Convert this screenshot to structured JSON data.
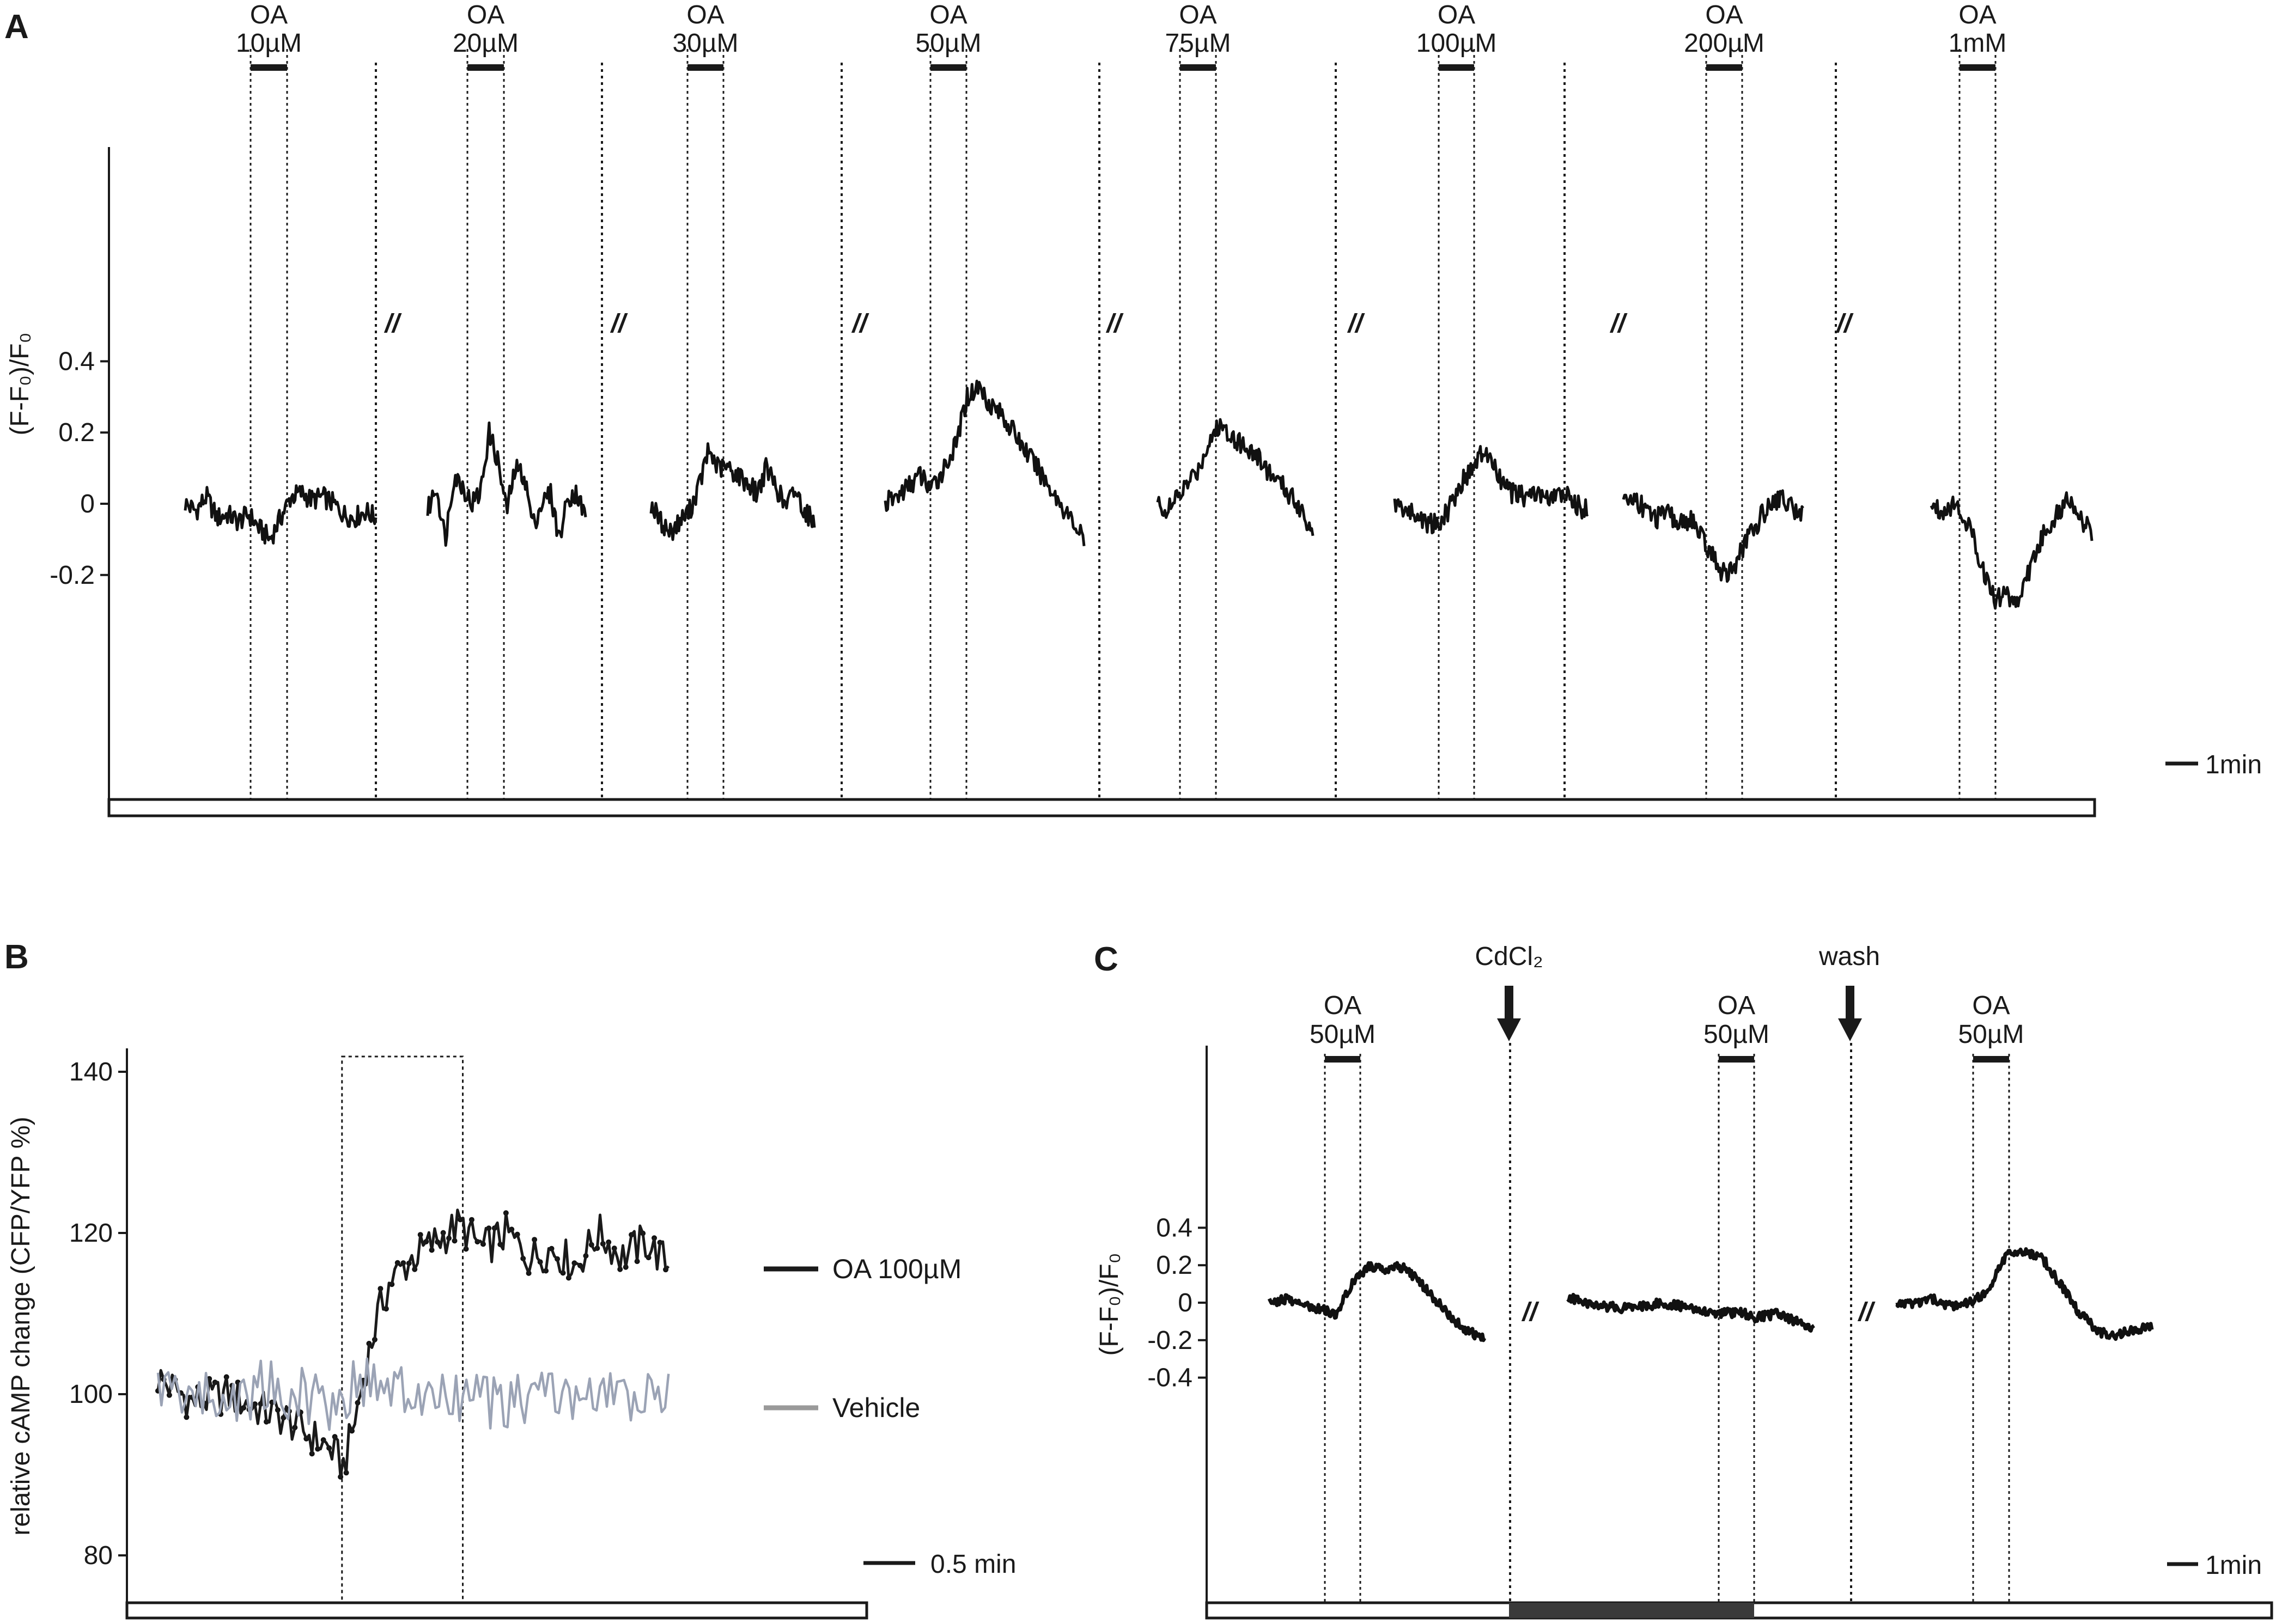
{
  "chart_data": [
    {
      "panel": "A",
      "type": "line",
      "ylabel": "(F-F₀)/F₀",
      "ylim": [
        -0.33,
        0.41
      ],
      "yticks": [
        {
          "value": 0.4,
          "label": "0.4"
        },
        {
          "value": 0.2,
          "label": "0.2"
        },
        {
          "value": 0,
          "label": "0"
        },
        {
          "value": -0.2,
          "label": "-0.2"
        }
      ],
      "scale_bar": "1min",
      "drug": "OA",
      "break_mark": "//",
      "segments": [
        {
          "concentration": "10µM",
          "trace_min": [
            0,
            10.5
          ],
          "stim_min": [
            3.6,
            5.5
          ],
          "values": [
            0.0,
            -0.02,
            0.02,
            -0.04,
            -0.03,
            -0.05,
            -0.03,
            -0.07,
            -0.1,
            -0.04,
            0.02,
            0.03,
            0.01,
            0.02,
            0.0,
            -0.03,
            -0.04,
            -0.02,
            -0.04
          ]
        },
        {
          "concentration": "20µM",
          "trace_min": [
            0,
            9.2
          ],
          "stim_min": [
            2.2,
            4.2
          ],
          "values": [
            -0.02,
            0.05,
            -0.1,
            0.08,
            0.05,
            0.0,
            0.03,
            0.2,
            0.12,
            -0.02,
            0.1,
            0.08,
            -0.06,
            0.0,
            0.03,
            -0.1,
            0.02,
            0.03,
            -0.04
          ]
        },
        {
          "concentration": "30µM",
          "trace_min": [
            0,
            9.2
          ],
          "stim_min": [
            2.0,
            4.0
          ],
          "values": [
            0.0,
            -0.05,
            -0.08,
            -0.05,
            -0.02,
            0.05,
            0.15,
            0.1,
            0.1,
            0.08,
            0.06,
            0.03,
            0.1,
            0.05,
            -0.01,
            0.04,
            -0.02,
            -0.05
          ]
        },
        {
          "concentration": "50µM",
          "trace_min": [
            0,
            10.7
          ],
          "stim_min": [
            2.5,
            4.5
          ],
          "values": [
            0.0,
            0.02,
            0.05,
            0.08,
            0.04,
            0.1,
            0.16,
            0.3,
            0.33,
            0.28,
            0.25,
            0.2,
            0.15,
            0.1,
            0.05,
            0.0,
            -0.05,
            -0.1
          ]
        },
        {
          "concentration": "75µM",
          "trace_min": [
            0,
            9.2
          ],
          "stim_min": [
            1.2,
            3.2
          ],
          "values": [
            0.0,
            -0.02,
            0.02,
            0.06,
            0.1,
            0.18,
            0.22,
            0.2,
            0.17,
            0.15,
            0.12,
            0.08,
            0.05,
            0.02,
            -0.02,
            -0.08
          ]
        },
        {
          "concentration": "100µM",
          "trace_min": [
            0,
            10.7
          ],
          "stim_min": [
            2.8,
            4.8
          ],
          "values": [
            0.0,
            -0.02,
            -0.04,
            -0.06,
            -0.03,
            0.05,
            0.1,
            0.15,
            0.08,
            0.03,
            0.02,
            0.03,
            0.01,
            0.03,
            0.0,
            -0.02
          ]
        },
        {
          "concentration": "200µM",
          "trace_min": [
            0,
            10.2
          ],
          "stim_min": [
            4.6,
            6.6
          ],
          "values": [
            0.0,
            0.02,
            -0.02,
            -0.04,
            -0.03,
            -0.06,
            -0.04,
            -0.1,
            -0.15,
            -0.2,
            -0.17,
            -0.1,
            -0.05,
            0.0,
            0.02,
            -0.01,
            -0.03
          ]
        },
        {
          "concentration": "1mM",
          "trace_min": [
            0,
            9.2
          ],
          "stim_min": [
            1.7,
            3.7
          ],
          "values": [
            0.0,
            -0.02,
            0.0,
            -0.03,
            -0.1,
            -0.2,
            -0.27,
            -0.25,
            -0.28,
            -0.2,
            -0.12,
            -0.06,
            -0.02,
            0.02,
            -0.05,
            -0.08
          ]
        }
      ]
    },
    {
      "panel": "B",
      "type": "line",
      "ylabel": "relative cAMP change (CFP/YFP %)",
      "ylim": [
        78,
        142
      ],
      "yticks": [
        {
          "value": 140,
          "label": "140"
        },
        {
          "value": 120,
          "label": "120"
        },
        {
          "value": 100,
          "label": "100"
        },
        {
          "value": 80,
          "label": "80"
        }
      ],
      "scale_bar": "0.5 min",
      "stim_window_min": [
        1.6,
        2.5
      ],
      "series": [
        {
          "name": "OA 100µM",
          "color": "#1a1a1a",
          "x": [
            0,
            0.3,
            0.6,
            0.9,
            1.1,
            1.3,
            1.5,
            1.6,
            1.7,
            1.8,
            1.9,
            2.0,
            2.2,
            2.4,
            2.6,
            2.8,
            3.0,
            3.2,
            3.4,
            3.6,
            3.8,
            4.0,
            4.2,
            4.4
          ],
          "values": [
            102,
            99,
            100,
            98,
            97,
            95,
            93,
            91,
            97,
            104,
            110,
            114,
            117,
            119,
            121,
            118,
            120,
            117,
            118,
            116,
            120,
            117,
            119,
            116
          ]
        },
        {
          "name": "Vehicle",
          "color": "#9ba3b5",
          "x": [
            0,
            0.3,
            0.6,
            0.9,
            1.2,
            1.5,
            1.8,
            2.1,
            2.4,
            2.7,
            3.0,
            3.3,
            3.6,
            3.9,
            4.2,
            4.4
          ],
          "values": [
            101,
            100,
            99,
            101,
            100,
            99,
            102,
            100,
            99,
            100,
            98,
            101,
            99,
            100,
            99,
            100
          ]
        }
      ]
    },
    {
      "panel": "C",
      "type": "line",
      "ylabel": "(F-F₀)/F₀",
      "ylim": [
        -0.6,
        0.55
      ],
      "yticks": [
        {
          "value": 0.4,
          "label": "0.4"
        },
        {
          "value": 0.2,
          "label": "0.2"
        },
        {
          "value": 0,
          "label": "0"
        },
        {
          "value": -0.2,
          "label": "-0.2"
        },
        {
          "value": -0.4,
          "label": "-0.4"
        }
      ],
      "scale_bar": "1min",
      "break_mark": "//",
      "events": [
        {
          "label": "CdCl₂"
        },
        {
          "label": "wash"
        }
      ],
      "segments": [
        {
          "stim": "OA 50µM",
          "trace_min": [
            0,
            8.5
          ],
          "stim_min": [
            2.1,
            3.1
          ],
          "values": [
            0.0,
            0.02,
            -0.01,
            -0.03,
            -0.06,
            0.1,
            0.2,
            0.18,
            0.19,
            0.12,
            0.02,
            -0.08,
            -0.15,
            -0.2
          ]
        },
        {
          "stim": "OA 50µM",
          "trace_min": [
            0,
            8.2
          ],
          "stim_min": [
            4.2,
            5.2
          ],
          "values": [
            0.03,
            -0.01,
            -0.02,
            -0.03,
            -0.02,
            0.0,
            -0.02,
            -0.05,
            -0.06,
            -0.05,
            -0.08,
            -0.06,
            -0.1,
            -0.13
          ]
        },
        {
          "stim": "OA 50µM",
          "trace_min": [
            0,
            8.4
          ],
          "stim_min": [
            2.5,
            3.5
          ],
          "values": [
            0.0,
            -0.01,
            0.02,
            -0.02,
            0.0,
            0.05,
            0.25,
            0.28,
            0.24,
            0.1,
            -0.05,
            -0.15,
            -0.18,
            -0.14,
            -0.13
          ]
        }
      ]
    }
  ]
}
